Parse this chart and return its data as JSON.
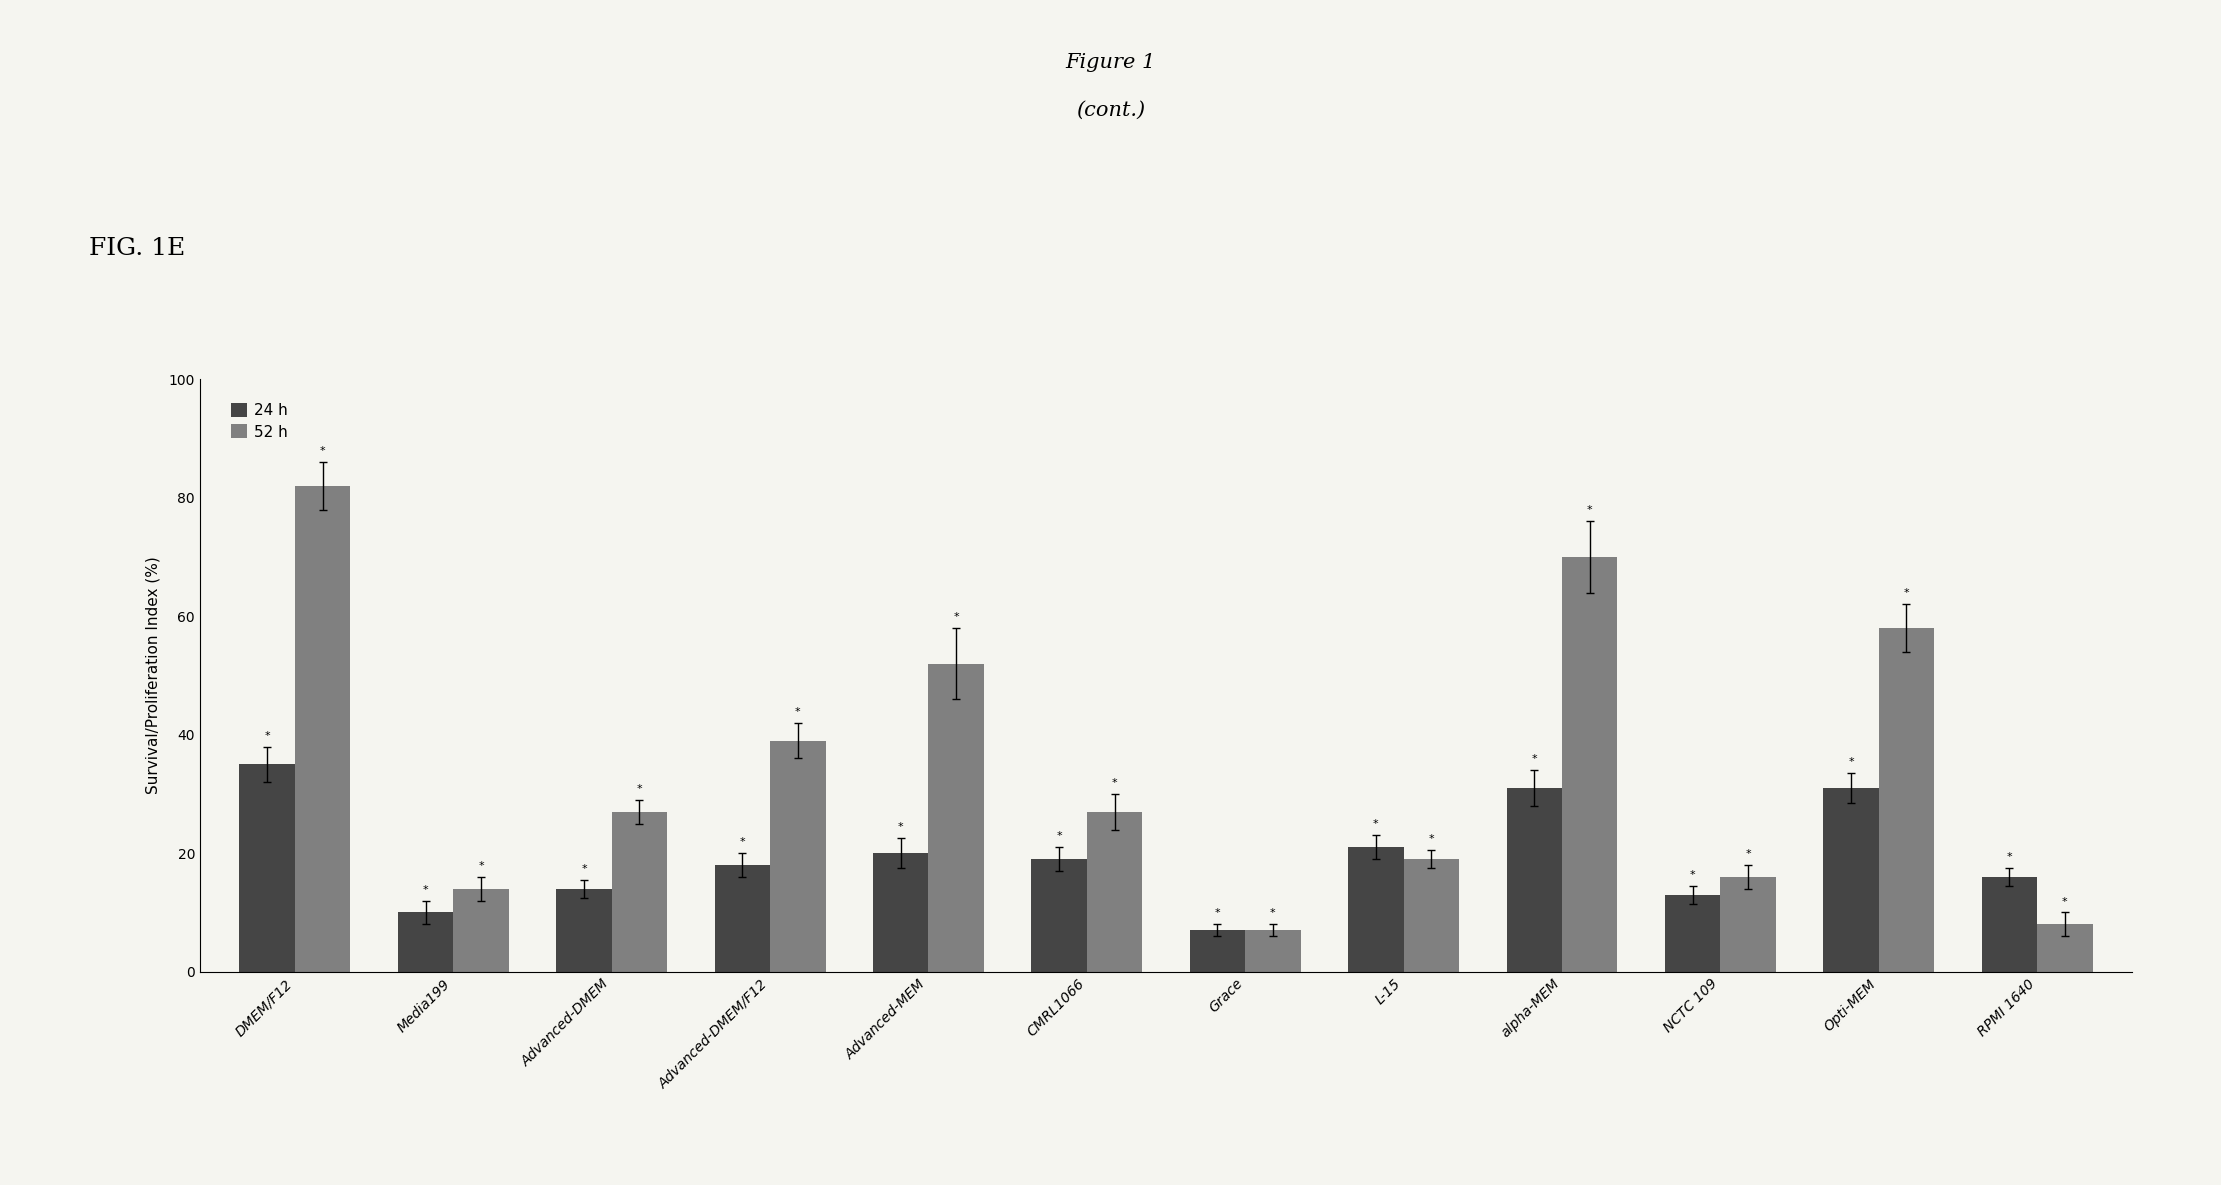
{
  "title": "Figure 1",
  "subtitle": "(cont.)",
  "fig_label": "FIG. 1E",
  "ylabel": "Survival/Proliferation Index (%)",
  "ylim": [
    0,
    100
  ],
  "yticks": [
    0,
    20,
    40,
    60,
    80,
    100
  ],
  "categories": [
    "DMEM/F12",
    "Media199",
    "Advanced-DMEM",
    "Advanced-DMEM/F12",
    "Advanced-MEM",
    "CMRL1066",
    "Grace",
    "L-15",
    "alpha-MEM",
    "NCTC 109",
    "Opti-MEM",
    "RPMI 1640"
  ],
  "values_24h": [
    35,
    10,
    14,
    18,
    20,
    19,
    7,
    21,
    31,
    13,
    31,
    16
  ],
  "values_52h": [
    82,
    14,
    27,
    39,
    52,
    27,
    7,
    19,
    70,
    16,
    58,
    8
  ],
  "errors_24h": [
    3,
    2,
    1.5,
    2,
    2.5,
    2,
    1,
    2,
    3,
    1.5,
    2.5,
    1.5
  ],
  "errors_52h": [
    4,
    2,
    2,
    3,
    6,
    3,
    1,
    1.5,
    6,
    2,
    4,
    2
  ],
  "color_24h": "#454545",
  "color_52h": "#808080",
  "bar_width": 0.35,
  "legend_labels": [
    "24 h",
    "52 h"
  ],
  "background_color": "#f5f5f0",
  "title_fontsize": 15,
  "label_fontsize": 11,
  "tick_fontsize": 10
}
